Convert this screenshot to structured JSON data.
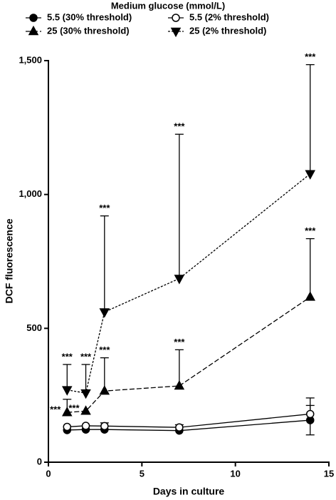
{
  "chart_data": {
    "type": "line",
    "legend_title": "Medium glucose (mmol/L)",
    "x_label": "Days in culture",
    "y_label": "DCF fluorescence",
    "x": [
      1,
      2,
      3,
      7,
      14
    ],
    "xlim": [
      0,
      15
    ],
    "xticks": [
      0,
      5,
      10,
      15
    ],
    "ylim": [
      0,
      1500
    ],
    "yticks": [
      0,
      500,
      {
        "value": 1000,
        "label": "1,000"
      },
      {
        "value": 1500,
        "label": "1,500"
      }
    ],
    "series": [
      {
        "name": "5.5 (30% threshold)",
        "marker": "circle",
        "filled": true,
        "dash": "solid",
        "color": "#000000",
        "values": [
          120,
          122,
          122,
          118,
          157
        ],
        "errors": [
          null,
          null,
          null,
          null,
          55
        ],
        "error_bars": "both",
        "annotations": [
          null,
          null,
          null,
          null,
          null
        ]
      },
      {
        "name": "5.5 (2% threshold)",
        "marker": "circle",
        "filled": false,
        "dash": "solid",
        "color": "#000000",
        "values": [
          132,
          136,
          135,
          130,
          180
        ],
        "errors": [
          null,
          null,
          12,
          10,
          60
        ],
        "error_bars": "up",
        "annotations": [
          null,
          null,
          null,
          null,
          null
        ]
      },
      {
        "name": "25 (30% threshold)",
        "marker": "triangle-up",
        "filled": true,
        "dash": "long",
        "color": "#000000",
        "values": [
          186,
          191,
          266,
          285,
          617
        ],
        "errors": [
          49,
          null,
          124,
          135,
          218
        ],
        "error_bars": "up",
        "annotations": [
          "***",
          "***",
          "***",
          "***",
          "***"
        ]
      },
      {
        "name": "25 (2% threshold)",
        "marker": "triangle-down",
        "filled": true,
        "dash": "short",
        "color": "#000000",
        "values": [
          270,
          258,
          561,
          686,
          1077
        ],
        "errors": [
          95,
          107,
          359,
          539,
          408
        ],
        "error_bars": "up",
        "annotations": [
          "***",
          "***",
          "***",
          "***",
          "***"
        ]
      }
    ]
  }
}
